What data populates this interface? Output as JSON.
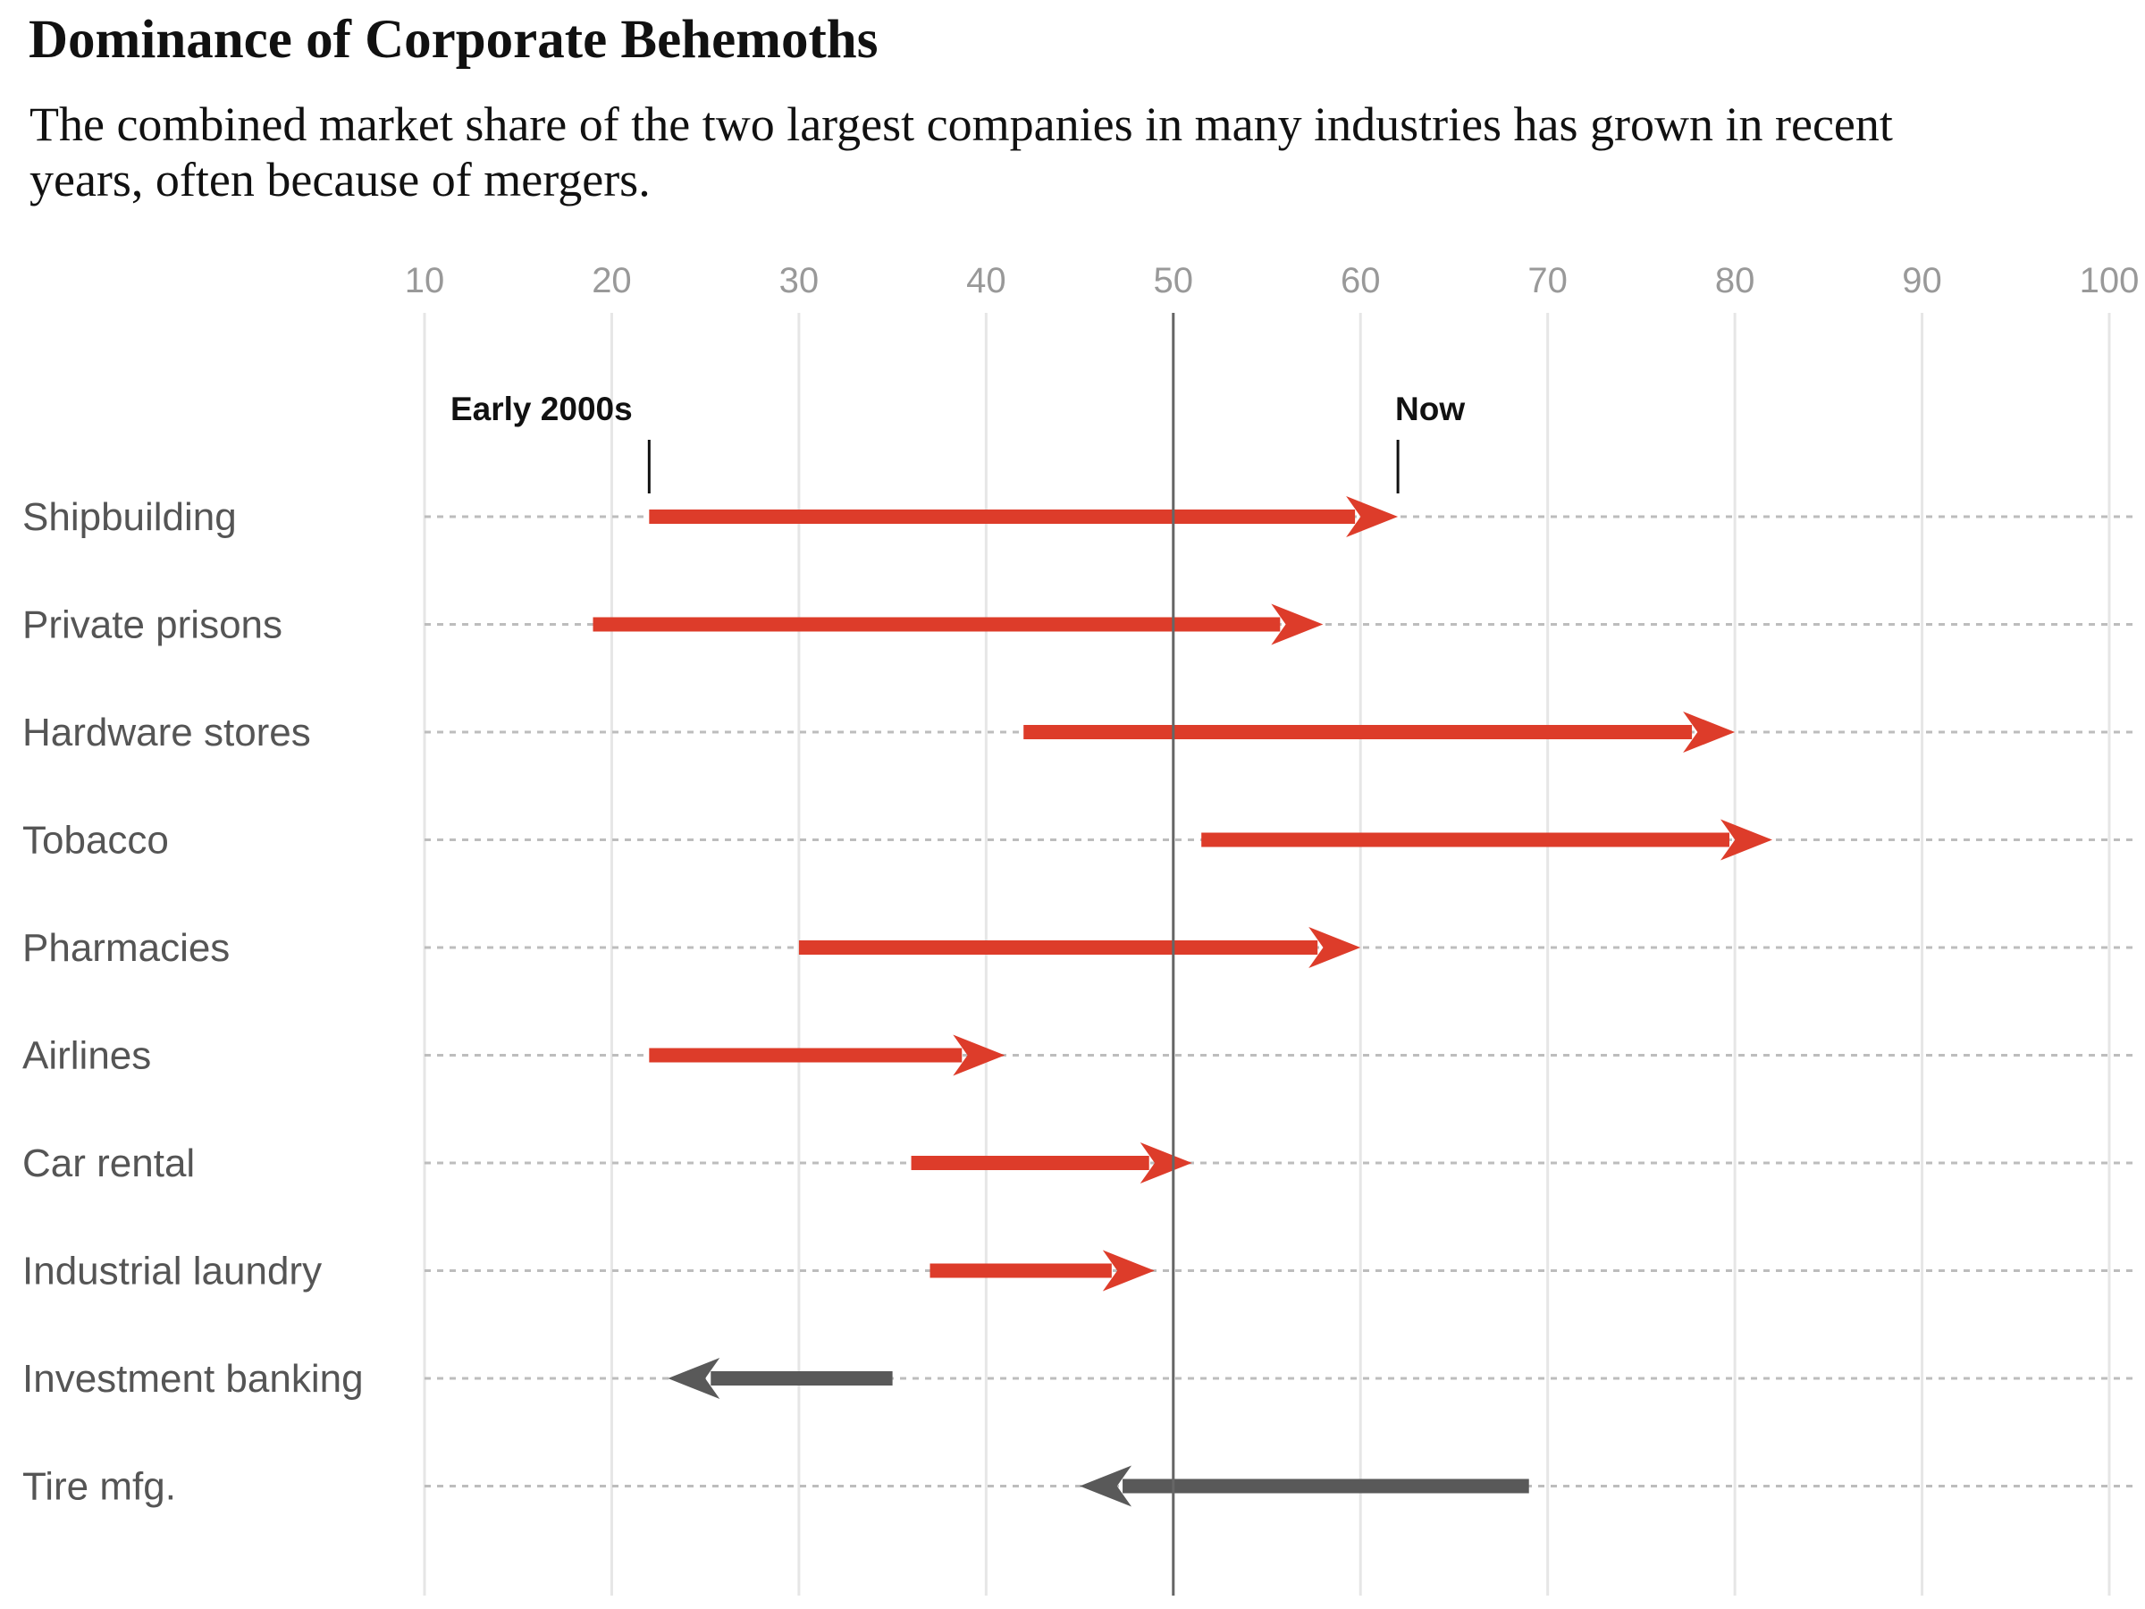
{
  "title": "Dominance of Corporate Behemoths",
  "subtitle": "The combined market share of the two largest companies in many industries has grown in recent years, often because of mergers.",
  "colors": {
    "increase": "#dd3c2a",
    "decrease": "#595959",
    "grid": "#e6e6e6",
    "guide": "#bdbdbd",
    "reference": "#666666"
  },
  "chart_data": {
    "type": "arrow",
    "title": "Dominance of Corporate Behemoths",
    "subtitle": "The combined market share of the two largest companies in many industries has grown in recent years, often because of mergers.",
    "xlim": [
      10,
      100
    ],
    "xticks": [
      10,
      20,
      30,
      40,
      50,
      60,
      70,
      80,
      90,
      100
    ],
    "reference_line": 50,
    "grid": true,
    "annotations": {
      "start": "Early 2000s",
      "end": "Now"
    },
    "series": [
      {
        "category": "Shipbuilding",
        "early": 22,
        "now": 62
      },
      {
        "category": "Private prisons",
        "early": 19,
        "now": 58
      },
      {
        "category": "Hardware stores",
        "early": 42,
        "now": 80
      },
      {
        "category": "Tobacco",
        "early": 51.5,
        "now": 82
      },
      {
        "category": "Pharmacies",
        "early": 30,
        "now": 60
      },
      {
        "category": "Airlines",
        "early": 22,
        "now": 41
      },
      {
        "category": "Car rental",
        "early": 36,
        "now": 51
      },
      {
        "category": "Industrial laundry",
        "early": 37,
        "now": 49
      },
      {
        "category": "Investment banking",
        "early": 35,
        "now": 23
      },
      {
        "category": "Tire mfg.",
        "early": 69,
        "now": 45
      }
    ]
  }
}
